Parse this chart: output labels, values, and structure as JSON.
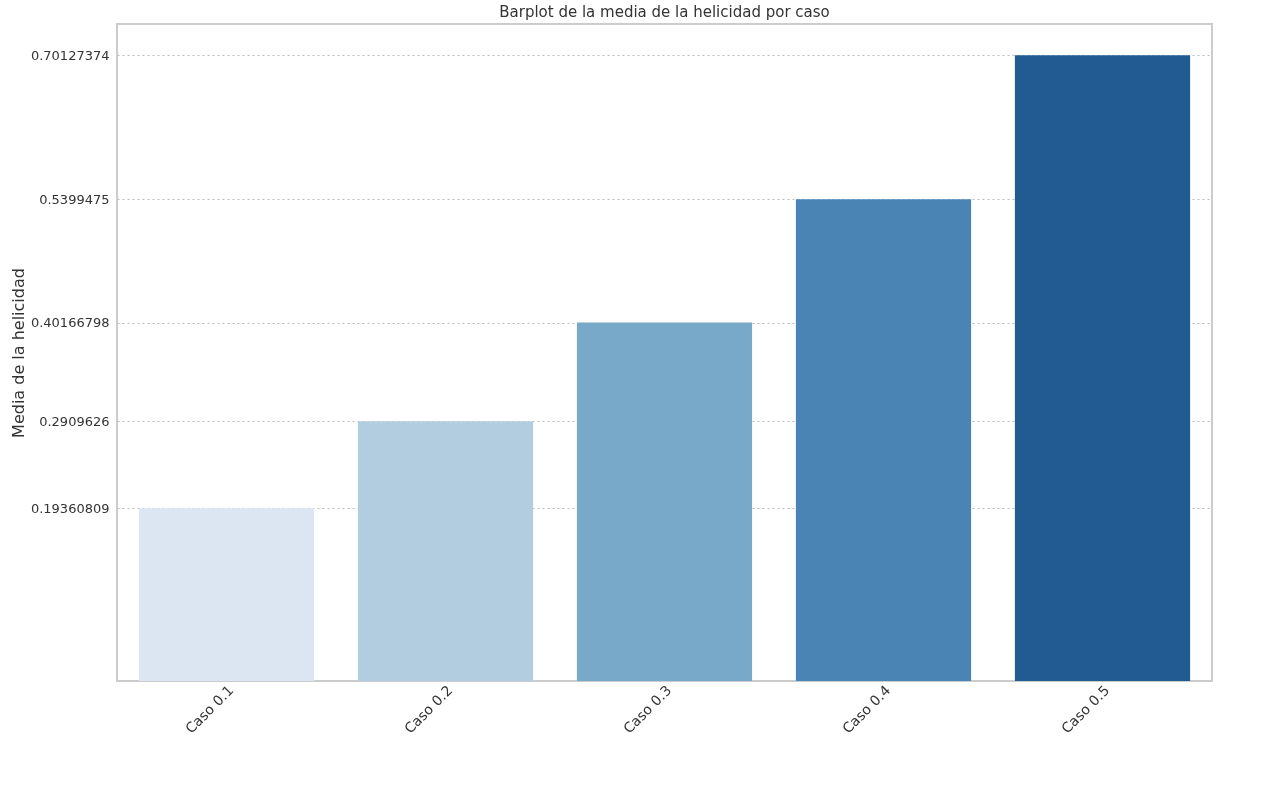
{
  "chart_data": {
    "type": "bar",
    "title": "Barplot de la media de la helicidad por caso",
    "ylabel": "Media de la helicidad",
    "categories": [
      "Caso 0.1",
      "Caso 0.2",
      "Caso 0.3",
      "Caso 0.4",
      "Caso 0.5"
    ],
    "values": [
      0.19360809,
      0.2909626,
      0.40166798,
      0.5399475,
      0.70127374
    ],
    "colors": [
      "#dbe6f2",
      "#b3cde0",
      "#79a9c8",
      "#4984b4",
      "#225b91"
    ],
    "ylim": [
      0,
      0.7363
    ],
    "yticks": [
      0.19360809,
      0.2909626,
      0.40166798,
      0.5399475,
      0.70127374
    ],
    "grid": "y",
    "legend": false
  }
}
